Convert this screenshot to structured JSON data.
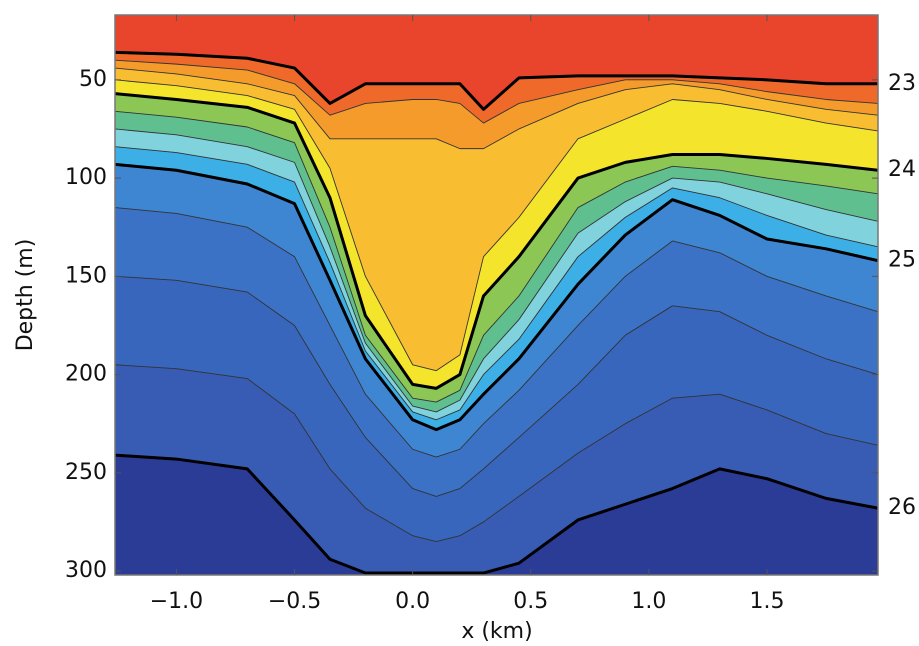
{
  "chart_data": {
    "type": "contour",
    "xlabel": "x (km)",
    "ylabel": "Depth (m)",
    "xlim": [
      -1.26,
      1.97
    ],
    "ylim": [
      17,
      302
    ],
    "y_inverted": true,
    "xticks": [
      {
        "value": -1,
        "label": "−1.0"
      },
      {
        "value": -0.5,
        "label": "−0.5"
      },
      {
        "value": 0,
        "label": "0.0"
      },
      0.5,
      {
        "value": 1,
        "label": "1.0"
      },
      1.5
    ],
    "yticks": [
      50,
      100,
      150,
      200,
      250,
      300
    ],
    "x": [
      -1.26,
      -1.0,
      -0.7,
      -0.5,
      -0.35,
      -0.2,
      0,
      0.1,
      0.2,
      0.3,
      0.45,
      0.7,
      0.9,
      1.1,
      1.3,
      1.5,
      1.75,
      1.97
    ],
    "band_colors": [
      "#e8452c",
      "#ef6a2a",
      "#f59b2b",
      "#f8bd30",
      "#f4e52c",
      "#8cc654",
      "#5fbf8f",
      "#80d2dc",
      "#3cb0e6",
      "#3f86d2",
      "#3b72c5",
      "#3866bd",
      "#385bb3",
      "#2b3c96"
    ],
    "contours": [
      {
        "level": 23,
        "values": [
          36,
          37,
          39,
          44,
          62,
          52,
          52,
          52,
          52,
          65,
          49,
          48,
          48,
          48,
          49,
          50,
          52,
          52
        ]
      },
      {
        "level": 23.25,
        "values": [
          40,
          42,
          45,
          52,
          68,
          62,
          60,
          60,
          62,
          72,
          62,
          55,
          50,
          50,
          52,
          56,
          60,
          62
        ]
      },
      {
        "level": 23.5,
        "values": [
          44,
          47,
          52,
          58,
          80,
          80,
          80,
          80,
          85,
          85,
          75,
          62,
          55,
          52,
          55,
          60,
          65,
          68
        ]
      },
      {
        "level": 23.75,
        "values": [
          50,
          53,
          58,
          65,
          95,
          150,
          195,
          198,
          190,
          140,
          120,
          80,
          70,
          60,
          62,
          66,
          72,
          76
        ]
      },
      {
        "level": 24,
        "values": [
          57,
          60,
          64,
          72,
          110,
          170,
          205,
          207,
          200,
          160,
          140,
          100,
          92,
          88,
          88,
          90,
          93,
          96
        ]
      },
      {
        "level": 24.25,
        "values": [
          66,
          69,
          74,
          82,
          125,
          180,
          212,
          214,
          208,
          180,
          160,
          115,
          102,
          94,
          96,
          100,
          104,
          108
        ]
      },
      {
        "level": 24.5,
        "values": [
          75,
          78,
          84,
          92,
          135,
          184,
          216,
          219,
          213,
          192,
          172,
          128,
          112,
          100,
          102,
          108,
          116,
          122
        ]
      },
      {
        "level": 24.75,
        "values": [
          84,
          87,
          93,
          102,
          143,
          188,
          219,
          223,
          218,
          200,
          182,
          140,
          120,
          105,
          110,
          119,
          129,
          135
        ]
      },
      {
        "level": 25,
        "values": [
          93,
          96,
          103,
          113,
          152,
          192,
          223,
          228,
          223,
          210,
          192,
          154,
          129,
          111,
          119,
          131,
          136,
          142
        ]
      },
      {
        "level": 25.25,
        "values": [
          115,
          118,
          125,
          140,
          175,
          210,
          238,
          242,
          238,
          225,
          208,
          175,
          150,
          132,
          138,
          150,
          160,
          168
        ]
      },
      {
        "level": 25.5,
        "values": [
          150,
          152,
          158,
          175,
          205,
          232,
          258,
          262,
          258,
          248,
          232,
          205,
          180,
          165,
          168,
          180,
          192,
          200
        ]
      },
      {
        "level": 25.75,
        "values": [
          195,
          197,
          202,
          220,
          248,
          268,
          282,
          285,
          282,
          275,
          262,
          240,
          225,
          212,
          210,
          218,
          230,
          236
        ]
      },
      {
        "level": 26,
        "values": [
          241,
          243,
          248,
          274,
          294,
          301,
          301,
          301,
          301,
          301,
          296,
          274,
          266,
          258,
          248,
          253,
          263,
          268
        ]
      }
    ]
  }
}
